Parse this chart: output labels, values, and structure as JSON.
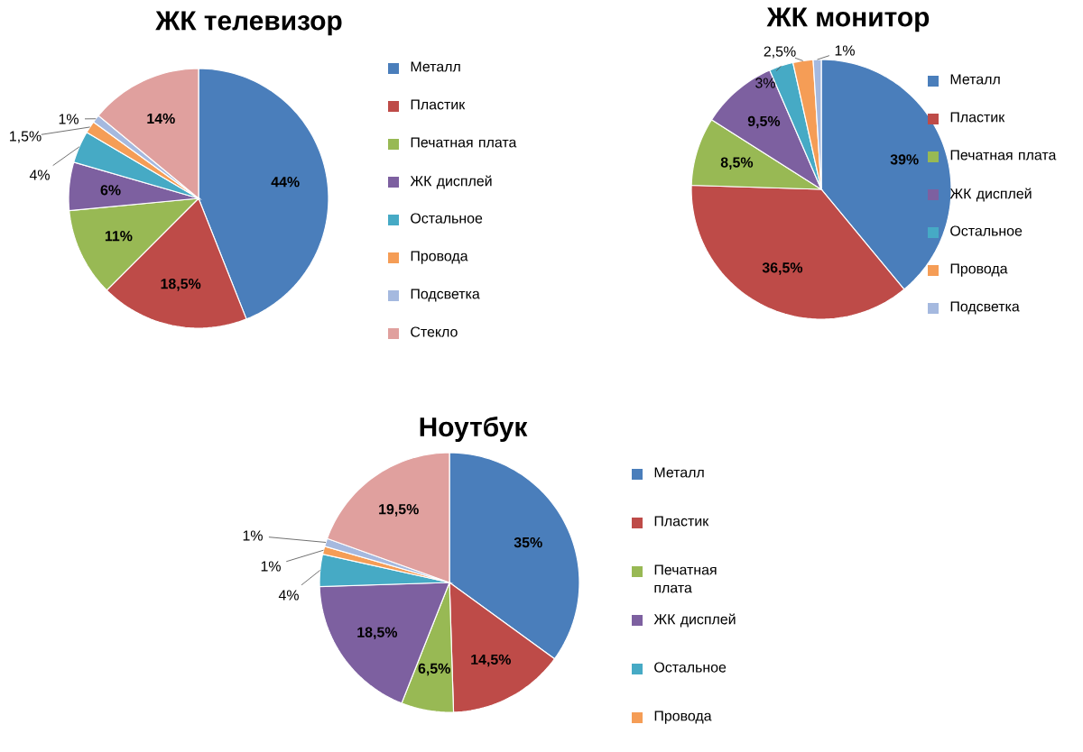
{
  "chart_data": [
    {
      "type": "pie",
      "title": "ЖК телевизор",
      "legend": "right",
      "categories": [
        "Металл",
        "Пластик",
        "Печатная плата",
        "ЖК дисплей",
        "Остальное",
        "Провода",
        "Подсветка",
        "Стекло"
      ],
      "values": [
        44,
        18.5,
        11,
        6,
        4,
        1.5,
        1,
        14
      ],
      "value_labels": [
        "44%",
        "18,5%",
        "11%",
        "6%",
        "4%",
        "1,5%",
        "1%",
        "14%"
      ],
      "colors": [
        "#4a7ebb",
        "#be4b48",
        "#98b954",
        "#7d60a0",
        "#46aac5",
        "#f59d56",
        "#a5b9df",
        "#e0a09e"
      ]
    },
    {
      "type": "pie",
      "title": "ЖК монитор",
      "legend": "right",
      "categories": [
        "Металл",
        "Пластик",
        "Печатная плата",
        "ЖК дисплей",
        "Остальное",
        "Провода",
        "Подсветка"
      ],
      "values": [
        39,
        36.5,
        8.5,
        9.5,
        3,
        2.5,
        1
      ],
      "value_labels": [
        "39%",
        "36,5%",
        "8,5%",
        "9,5%",
        "3%",
        "2,5%",
        "1%"
      ],
      "colors": [
        "#4a7ebb",
        "#be4b48",
        "#98b954",
        "#7d60a0",
        "#46aac5",
        "#f59d56",
        "#a5b9df"
      ]
    },
    {
      "type": "pie",
      "title": "Ноутбук",
      "legend": "right",
      "categories": [
        "Металл",
        "Пластик",
        "Печатная плата",
        "ЖК дисплей",
        "Остальное",
        "Провода",
        null,
        null
      ],
      "values": [
        35,
        14.5,
        6.5,
        18.5,
        4,
        1,
        1,
        19.5
      ],
      "value_labels": [
        "35%",
        "14,5%",
        "6,5%",
        "18,5%",
        "4%",
        "1%",
        "1%",
        "19,5%"
      ],
      "colors": [
        "#4a7ebb",
        "#be4b48",
        "#98b954",
        "#7d60a0",
        "#46aac5",
        "#f59d56",
        "#a5b9df",
        "#e0a09e"
      ]
    }
  ]
}
